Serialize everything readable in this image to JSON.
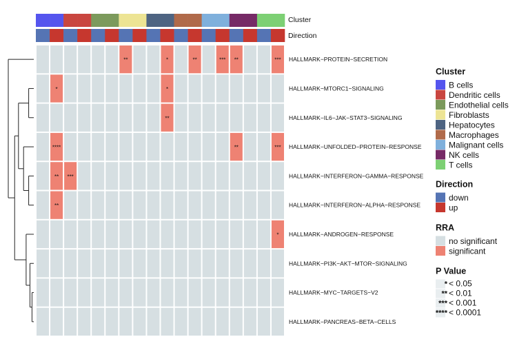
{
  "chart_data": {
    "type": "heatmap",
    "annotation_labels": {
      "cluster": "Cluster",
      "direction": "Direction"
    },
    "columns": [
      {
        "cluster": "B cells",
        "direction": "down"
      },
      {
        "cluster": "B cells",
        "direction": "up"
      },
      {
        "cluster": "Dendritic cells",
        "direction": "down"
      },
      {
        "cluster": "Dendritic cells",
        "direction": "up"
      },
      {
        "cluster": "Endothelial cells",
        "direction": "down"
      },
      {
        "cluster": "Endothelial cells",
        "direction": "up"
      },
      {
        "cluster": "Fibroblasts",
        "direction": "down"
      },
      {
        "cluster": "Fibroblasts",
        "direction": "up"
      },
      {
        "cluster": "Hepatocytes",
        "direction": "down"
      },
      {
        "cluster": "Hepatocytes",
        "direction": "up"
      },
      {
        "cluster": "Macrophages",
        "direction": "down"
      },
      {
        "cluster": "Macrophages",
        "direction": "up"
      },
      {
        "cluster": "Malignant cells",
        "direction": "down"
      },
      {
        "cluster": "Malignant cells",
        "direction": "up"
      },
      {
        "cluster": "NK cells",
        "direction": "down"
      },
      {
        "cluster": "NK cells",
        "direction": "up"
      },
      {
        "cluster": "T cells",
        "direction": "down"
      },
      {
        "cluster": "T cells",
        "direction": "up"
      }
    ],
    "rows": [
      "HALLMARK−PROTEIN−SECRETION",
      "HALLMARK−MTORC1−SIGNALING",
      "HALLMARK−IL6−JAK−STAT3−SIGNALING",
      "HALLMARK−UNFOLDED−PROTEIN−RESPONSE",
      "HALLMARK−INTERFERON−GAMMA−RESPONSE",
      "HALLMARK−INTERFERON−ALPHA−RESPONSE",
      "HALLMARK−ANDROGEN−RESPONSE",
      "HALLMARK−PI3K−AKT−MTOR−SIGNALING",
      "HALLMARK−MYC−TARGETS−V2",
      "HALLMARK−PANCREAS−BETA−CELLS"
    ],
    "significance_stars": [
      [
        "",
        "",
        "",
        "",
        "",
        "",
        "**",
        "",
        "",
        "*",
        "",
        "**",
        "",
        "***",
        "**",
        "",
        "",
        "***"
      ],
      [
        "",
        "*",
        "",
        "",
        "",
        "",
        "",
        "",
        "",
        "*",
        "",
        "",
        "",
        "",
        "",
        "",
        "",
        ""
      ],
      [
        "",
        "",
        "",
        "",
        "",
        "",
        "",
        "",
        "",
        "**",
        "",
        "",
        "",
        "",
        "",
        "",
        "",
        ""
      ],
      [
        "",
        "****",
        "",
        "",
        "",
        "",
        "",
        "",
        "",
        "",
        "",
        "",
        "",
        "",
        "**",
        "",
        "",
        "***"
      ],
      [
        "",
        "**",
        "***",
        "",
        "",
        "",
        "",
        "",
        "",
        "",
        "",
        "",
        "",
        "",
        "",
        "",
        "",
        ""
      ],
      [
        "",
        "**",
        "",
        "",
        "",
        "",
        "",
        "",
        "",
        "",
        "",
        "",
        "",
        "",
        "",
        "",
        "",
        ""
      ],
      [
        "",
        "",
        "",
        "",
        "",
        "",
        "",
        "",
        "",
        "",
        "",
        "",
        "",
        "",
        "",
        "",
        "",
        "*"
      ],
      [
        "",
        "",
        "",
        "",
        "",
        "",
        "",
        "",
        "",
        "",
        "",
        "",
        "",
        "",
        "",
        "",
        "",
        ""
      ],
      [
        "",
        "",
        "",
        "",
        "",
        "",
        "",
        "",
        "",
        "",
        "",
        "",
        "",
        "",
        "",
        "",
        "",
        ""
      ],
      [
        "",
        "",
        "",
        "",
        "",
        "",
        "",
        "",
        "",
        "",
        "",
        "",
        "",
        "",
        "",
        "",
        "",
        ""
      ]
    ],
    "dendrogram": {
      "leaf_order": [
        0,
        1,
        2,
        3,
        4,
        5,
        6,
        7,
        8,
        9
      ],
      "merges": [
        {
          "id": "n1",
          "left": 1,
          "right": 2,
          "height": 0.2
        },
        {
          "id": "n2",
          "left": 4,
          "right": 5,
          "height": 0.2
        },
        {
          "id": "n3",
          "left": 3,
          "right": "n2",
          "height": 0.4
        },
        {
          "id": "n4",
          "left": "n1",
          "right": "n3",
          "height": 0.6
        },
        {
          "id": "n5",
          "left": 8,
          "right": 9,
          "height": 0.07
        },
        {
          "id": "n6",
          "left": 7,
          "right": "n5",
          "height": 0.15
        },
        {
          "id": "n7",
          "left": 6,
          "right": "n6",
          "height": 0.3
        },
        {
          "id": "n8",
          "left": "n4",
          "right": "n7",
          "height": 0.75
        },
        {
          "id": "n9",
          "left": 0,
          "right": "n8",
          "height": 1.0
        }
      ]
    },
    "legends": {
      "cluster": {
        "title": "Cluster",
        "items": [
          {
            "label": "B cells",
            "color": "#5555ee"
          },
          {
            "label": "Dendritic cells",
            "color": "#c94640"
          },
          {
            "label": "Endothelial cells",
            "color": "#7c9a5c"
          },
          {
            "label": "Fibroblasts",
            "color": "#ede494"
          },
          {
            "label": "Hepatocytes",
            "color": "#4e6482"
          },
          {
            "label": "Macrophages",
            "color": "#b06a4a"
          },
          {
            "label": "Malignant cells",
            "color": "#7fb0dc"
          },
          {
            "label": "NK cells",
            "color": "#762a66"
          },
          {
            "label": "T cells",
            "color": "#7dd074"
          }
        ]
      },
      "direction": {
        "title": "Direction",
        "items": [
          {
            "label": "down",
            "color": "#5574b4"
          },
          {
            "label": "up",
            "color": "#c6372e"
          }
        ]
      },
      "rra": {
        "title": "RRA",
        "items": [
          {
            "label": "no significant",
            "color": "#d6dfe2"
          },
          {
            "label": "significant",
            "color": "#ee8273"
          }
        ]
      },
      "pvalue": {
        "title": "P Value",
        "items": [
          {
            "stars": "*",
            "label": "< 0.05"
          },
          {
            "stars": "**",
            "label": "< 0.01"
          },
          {
            "stars": "***",
            "label": "< 0.001"
          },
          {
            "stars": "****",
            "label": "< 0.0001"
          }
        ]
      }
    }
  }
}
